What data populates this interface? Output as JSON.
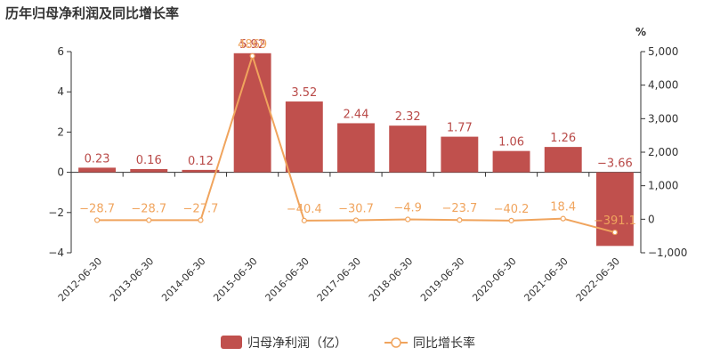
{
  "chart_data": {
    "type": "bar",
    "title": "历年归母净利润及同比增长率",
    "categories": [
      "2012-06-30",
      "2013-06-30",
      "2014-06-30",
      "2015-06-30",
      "2016-06-30",
      "2017-06-30",
      "2018-06-30",
      "2019-06-30",
      "2020-06-30",
      "2021-06-30",
      "2022-06-30"
    ],
    "series": [
      {
        "name": "归母净利润（亿）",
        "type": "bar",
        "axis": "left",
        "color": "#c0504d",
        "values": [
          0.23,
          0.16,
          0.12,
          5.92,
          3.52,
          2.44,
          2.32,
          1.77,
          1.06,
          1.26,
          -3.66
        ],
        "labels": [
          "0.23",
          "0.16",
          "0.12",
          "5.92",
          "3.52",
          "2.44",
          "2.32",
          "1.77",
          "1.06",
          "1.26",
          "−3.66"
        ]
      },
      {
        "name": "同比增长率",
        "type": "line",
        "axis": "right",
        "color": "#f0a45d",
        "values": [
          -28.7,
          -28.7,
          -27.7,
          4869,
          -40.4,
          -30.7,
          -4.9,
          -23.7,
          -40.2,
          18.4,
          -391.1
        ],
        "labels": [
          "−28.7",
          "−28.7",
          "−27.7",
          "4869",
          "−40.4",
          "−30.7",
          "−4.9",
          "−23.7",
          "−40.2",
          "18.4",
          "−391.1"
        ]
      }
    ],
    "y_left": {
      "ylim": [
        -4,
        6
      ],
      "ticks": [
        -4,
        -2,
        0,
        2,
        4,
        6
      ],
      "tick_labels": [
        "−4",
        "−2",
        "0",
        "2",
        "4",
        "6"
      ]
    },
    "y_right": {
      "unit": "%",
      "ylim": [
        -1000,
        5000
      ],
      "ticks": [
        -1000,
        0,
        1000,
        2000,
        3000,
        4000,
        5000
      ],
      "tick_labels": [
        "−1,000",
        "0",
        "1,000",
        "2,000",
        "3,000",
        "4,000",
        "5,000"
      ]
    },
    "grid": false,
    "legend_position": "bottom-center"
  }
}
